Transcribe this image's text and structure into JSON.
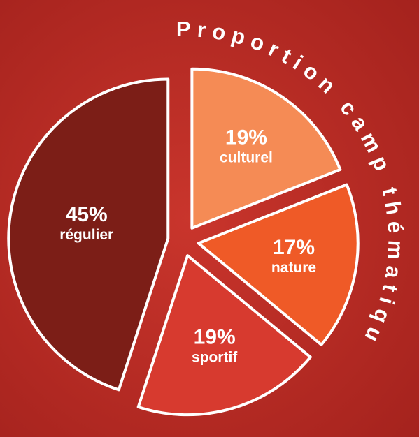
{
  "chart_data": {
    "type": "pie",
    "title": "Proportion camp thématique",
    "categories": [
      "culturel",
      "nature",
      "sportif",
      "régulier"
    ],
    "values": [
      19,
      17,
      19,
      45
    ],
    "value_labels": [
      "19%",
      "17%",
      "19%",
      "45%"
    ],
    "colors": [
      "#f58b55",
      "#ef5a27",
      "#d73a2f",
      "#7c1e17"
    ]
  }
}
